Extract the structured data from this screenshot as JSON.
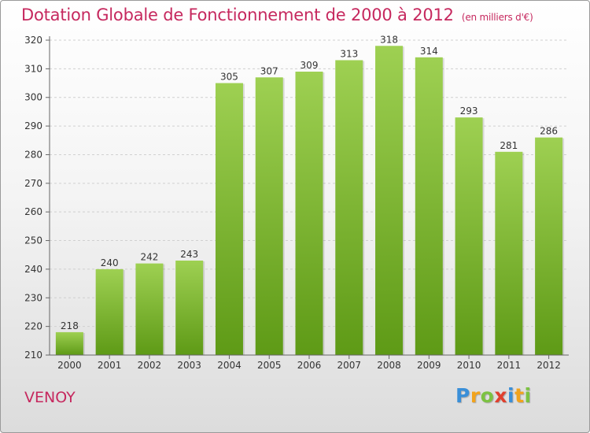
{
  "header": {
    "title": "Dotation Globale de Fonctionnement de 2000 à 2012",
    "unit": "(en milliers d'€)"
  },
  "footer": {
    "city": "VENOY",
    "logo_letters": [
      "P",
      "r",
      "o",
      "x",
      "i",
      "t",
      "i"
    ],
    "logo_colors": [
      "#3a8fd8",
      "#f2a31c",
      "#7cc242",
      "#e0402e",
      "#3a8fd8",
      "#f2a31c",
      "#7cc242"
    ]
  },
  "colors": {
    "bar_top": "#9ed052",
    "bar_bottom": "#5e9a16",
    "title": "#c6285e"
  },
  "chart_data": {
    "type": "bar",
    "categories": [
      "2000",
      "2001",
      "2002",
      "2003",
      "2004",
      "2005",
      "2006",
      "2007",
      "2008",
      "2009",
      "2010",
      "2011",
      "2012"
    ],
    "values": [
      218,
      240,
      242,
      243,
      305,
      307,
      309,
      313,
      318,
      314,
      293,
      281,
      286
    ],
    "ylim": [
      210,
      320
    ],
    "yticks": [
      210,
      220,
      230,
      240,
      250,
      260,
      270,
      280,
      290,
      300,
      310,
      320
    ],
    "grid": true
  }
}
